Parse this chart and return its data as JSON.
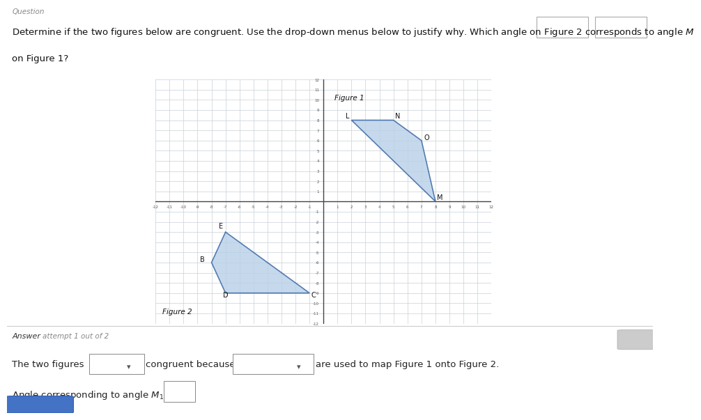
{
  "bg_color": "#ffffff",
  "grid_color": "#c8d0d8",
  "axis_color": "#444444",
  "figure1_label": "Figure 1",
  "figure2_label": "Figure 2",
  "fig1_poly": [
    [
      2,
      8
    ],
    [
      5,
      8
    ],
    [
      7,
      6
    ],
    [
      8,
      0
    ]
  ],
  "fig1_labels": [
    [
      "L",
      1.6,
      8.1
    ],
    [
      "N",
      5.1,
      8.1
    ],
    [
      "O",
      7.2,
      6.0
    ],
    [
      "M",
      8.1,
      0.1
    ]
  ],
  "fig2_poly": [
    [
      -7,
      -3
    ],
    [
      -8,
      -6
    ],
    [
      -7,
      -9
    ],
    [
      -1,
      -9
    ]
  ],
  "fig2_labels": [
    [
      "E",
      -7.5,
      -2.7
    ],
    [
      "B",
      -8.8,
      -6.0
    ],
    [
      "D",
      -7.2,
      -9.5
    ],
    [
      "C",
      -0.9,
      -9.5
    ]
  ],
  "poly_fill": "#b8d0e8",
  "poly_edge": "#3060a0",
  "xlim": [
    -12,
    12
  ],
  "ylim": [
    -12,
    12
  ],
  "question_text1": "Determine if the two figures below are congruent. Use the drop-down menus below to justify why. Which angle on Figure 2 corresponds to angle ",
  "question_M": "M",
  "question_text2": "",
  "question_line2": "on Figure 1?",
  "question_label": "Question",
  "answer_label": "Answer",
  "answer_sub": "attempt 1 out of 2"
}
